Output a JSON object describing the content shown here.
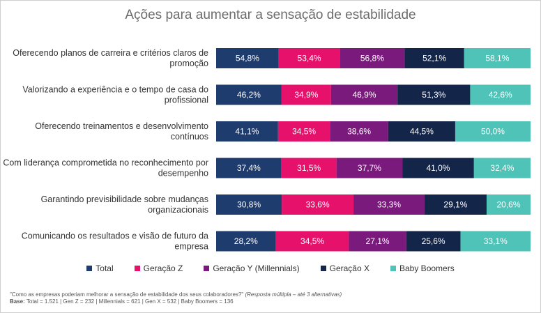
{
  "chart_data": {
    "type": "bar",
    "orientation": "horizontal",
    "stacked": true,
    "title": "Ações para aumentar a sensação de estabilidade",
    "categories": [
      "Oferecendo planos de carreira e critérios claros de promoção",
      "Valorizando a experiência e o tempo de casa do profissional",
      "Oferecendo treinamentos e desenvolvimento contínuos",
      "Com liderança comprometida no reconhecimento por desempenho",
      "Garantindo previsibilidade sobre mudanças organizacionais",
      "Comunicando os resultados e visão de futuro da empresa"
    ],
    "category_lines": [
      [
        "Oferecendo planos de carreira e critérios claros de",
        "promoção"
      ],
      [
        "Valorizando a experiência e o tempo de casa do",
        "profissional"
      ],
      [
        "Oferecendo treinamentos e desenvolvimento",
        "contínuos"
      ],
      [
        "Com liderança comprometida no reconhecimento por",
        "desempenho"
      ],
      [
        "Garantindo previsibilidade sobre mudanças",
        "organizacionais"
      ],
      [
        "Comunicando os resultados e visão de futuro da",
        "empresa"
      ]
    ],
    "series": [
      {
        "name": "Total",
        "color": "#1f3c6e",
        "values": [
          54.8,
          46.2,
          41.1,
          37.4,
          30.8,
          28.2
        ],
        "labels": [
          "54,8%",
          "46,2%",
          "41,1%",
          "37,4%",
          "30,8%",
          "28,2%"
        ]
      },
      {
        "name": "Geração Z",
        "color": "#e5116b",
        "values": [
          53.4,
          34.9,
          34.5,
          31.5,
          33.6,
          34.5
        ],
        "labels": [
          "53,4%",
          "34,9%",
          "34,5%",
          "31,5%",
          "33,6%",
          "34,5%"
        ]
      },
      {
        "name": "Geração Y (Millennials)",
        "color": "#7a1a7c",
        "values": [
          56.8,
          46.9,
          38.6,
          37.7,
          33.3,
          27.1
        ],
        "labels": [
          "56,8%",
          "46,9%",
          "38,6%",
          "37,7%",
          "33,3%",
          "27,1%"
        ]
      },
      {
        "name": "Geração X",
        "color": "#14254a",
        "values": [
          52.1,
          51.3,
          44.5,
          41.0,
          29.1,
          25.6
        ],
        "labels": [
          "52,1%",
          "51,3%",
          "44,5%",
          "41,0%",
          "29,1%",
          "25,6%"
        ]
      },
      {
        "name": "Baby Boomers",
        "color": "#4fc3b8",
        "values": [
          58.1,
          42.6,
          50.0,
          32.4,
          20.6,
          33.1
        ],
        "labels": [
          "58,1%",
          "42,6%",
          "50,0%",
          "32,4%",
          "20,6%",
          "33,1%"
        ]
      }
    ],
    "legend_position": "bottom",
    "grid": false
  },
  "footnote": {
    "question": "\"Como as empresas poderiam melhorar a sensação de estabilidade dos seus colaboradores?\"",
    "question_note": "(Resposta múltipla – até 3 alternativas)",
    "base_label": "Base:",
    "base_text": "Total = 1.521 | Gen Z = 232 | Millennials = 621 | Gen X = 532 | Baby Boomers = 136"
  }
}
